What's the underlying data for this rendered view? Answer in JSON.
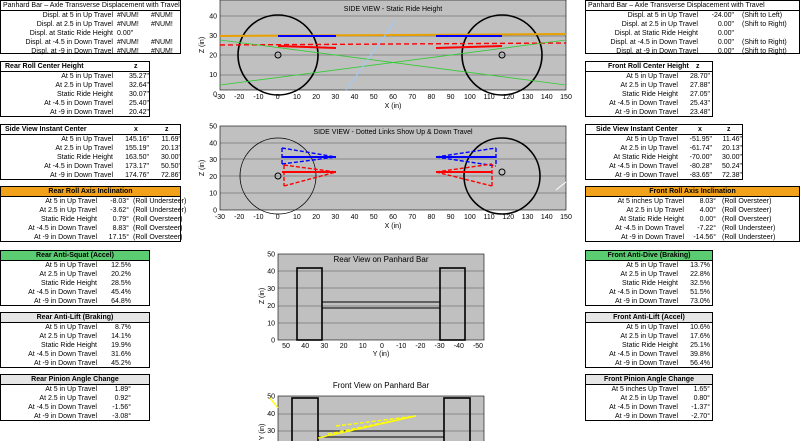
{
  "left": {
    "panhard": {
      "title": "Panhard Bar – Axle Transverse Displacement with Travel",
      "rows": [
        {
          "label": "Displ. at 5 in Up Travel",
          "v1": "#NUM!",
          "v2": "#NUM!"
        },
        {
          "label": "Displ. at 2.5 in Up Travel",
          "v1": "#NUM!",
          "v2": "#NUM!"
        },
        {
          "label": "Displ. at Static Ride Height",
          "v1": "0.00\"",
          "v2": ""
        },
        {
          "label": "Displ. at -4.5 in Down Travel",
          "v1": "#NUM!",
          "v2": "#NUM!"
        },
        {
          "label": "Displ. at -9 in Down Travel",
          "v1": "#NUM!",
          "v2": "#NUM!"
        }
      ]
    },
    "roll_center": {
      "title": "Rear Roll Center Height",
      "col": "z",
      "rows": [
        {
          "label": "At 5 in Up Travel",
          "v": "35.27\""
        },
        {
          "label": "At 2.5 in Up Travel",
          "v": "32.64\""
        },
        {
          "label": "Static Ride Height",
          "v": "30.07\""
        },
        {
          "label": "At -4.5 in Down Travel",
          "v": "25.40\""
        },
        {
          "label": "At -9 in Down Travel",
          "v": "20.42\""
        }
      ]
    },
    "ic": {
      "title": "Side View Instant Center",
      "colx": "x",
      "colz": "z",
      "rows": [
        {
          "label": "At 5 in Up Travel",
          "x": "145.16\"",
          "z": "11.69\""
        },
        {
          "label": "At 2.5 in Up Travel",
          "x": "155.19\"",
          "z": "20.13\""
        },
        {
          "label": "Static Ride Height",
          "x": "163.50\"",
          "z": "30.00\""
        },
        {
          "label": "At -4.5 in Down Travel",
          "x": "173.17\"",
          "z": "50.50\""
        },
        {
          "label": "At -9 in Down Travel",
          "x": "174.76\"",
          "z": "72.86\""
        }
      ]
    },
    "roll_axis": {
      "title": "Rear Roll Axis Inclination",
      "rows": [
        {
          "label": "At 5 in Up Travel",
          "v": "-8.03°",
          "n": "(Roll Understeer)"
        },
        {
          "label": "At 2.5 in Up Travel",
          "v": "-3.62°",
          "n": "(Roll Understeer)"
        },
        {
          "label": "Static Ride Height",
          "v": "0.79°",
          "n": "(Roll Oversteer)"
        },
        {
          "label": "At -4.5 in Down Travel",
          "v": "8.83°",
          "n": "(Roll Oversteer)"
        },
        {
          "label": "At -9 in Down Travel",
          "v": "17.15°",
          "n": "(Roll Oversteer)"
        }
      ]
    },
    "anti_squat": {
      "title": "Rear Anti-Squat (Accel)",
      "rows": [
        {
          "label": "At 5 in Up Travel",
          "v": "12.5%"
        },
        {
          "label": "At 2.5 in Up Travel",
          "v": "20.2%"
        },
        {
          "label": "Static Ride Height",
          "v": "28.5%"
        },
        {
          "label": "At -4.5 in Down Travel",
          "v": "45.4%"
        },
        {
          "label": "At -9 in Down Travel",
          "v": "64.8%"
        }
      ]
    },
    "anti_lift": {
      "title": "Rear Anti-Lift (Braking)",
      "rows": [
        {
          "label": "At 5 in Up Travel",
          "v": "8.7%"
        },
        {
          "label": "At 2.5 in Up Travel",
          "v": "14.1%"
        },
        {
          "label": "Static Ride Height",
          "v": "19.9%"
        },
        {
          "label": "At -4.5 in Down Travel",
          "v": "31.6%"
        },
        {
          "label": "At -9 in Down Travel",
          "v": "45.2%"
        }
      ]
    },
    "pinion": {
      "title": "Rear Pinion Angle Change",
      "rows": [
        {
          "label": "At 5 in Up Travel",
          "v": "1.89°"
        },
        {
          "label": "At 2.5 in Up Travel",
          "v": "0.92°"
        },
        {
          "label": "At -4.5 in Down Travel",
          "v": "-1.56°"
        },
        {
          "label": "At -9 in Down Travel",
          "v": "-3.08°"
        }
      ]
    }
  },
  "right": {
    "panhard": {
      "title": "Panhard Bar – Axle Transverse Displacement with Travel",
      "rows": [
        {
          "label": "Displ. at 5 in Up Travel",
          "v": "-24.00\"",
          "n": "(Shift to Left)"
        },
        {
          "label": "Displ. at 2.5 in Up Travel",
          "v": "0.00\"",
          "n": "(Shift to Right)"
        },
        {
          "label": "Displ. at Static Ride Height",
          "v": "0.00\"",
          "n": ""
        },
        {
          "label": "Displ. at -4.5 in Down Travel",
          "v": "0.00\"",
          "n": "(Shift to Right)"
        },
        {
          "label": "Displ. at -9 in Down Travel",
          "v": "0.00\"",
          "n": "(Shift to Right)"
        }
      ]
    },
    "roll_center": {
      "title": "Front Roll Center Height",
      "col": "z",
      "rows": [
        {
          "label": "At 5 in Up Travel",
          "v": "28.70\""
        },
        {
          "label": "At 2.5 in Up Travel",
          "v": "27.88\""
        },
        {
          "label": "Static Ride Height",
          "v": "27.05\""
        },
        {
          "label": "At -4.5 in Down Travel",
          "v": "25.43\""
        },
        {
          "label": "At -9 in Down Travel",
          "v": "23.48\""
        }
      ]
    },
    "ic": {
      "title": "Side View Instant Center",
      "colx": "x",
      "colz": "z",
      "rows": [
        {
          "label": "At 5 in Up Travel",
          "x": "-51.95\"",
          "z": "11.46\""
        },
        {
          "label": "At 2.5 in Up Travel",
          "x": "-61.74\"",
          "z": "20.13\""
        },
        {
          "label": "At Static Ride Height",
          "x": "-70.00\"",
          "z": "30.00\""
        },
        {
          "label": "At -4.5 in Down Travel",
          "x": "-80.28\"",
          "z": "50.24\""
        },
        {
          "label": "At -9 in Down Travel",
          "x": "-83.65\"",
          "z": "72.38\""
        }
      ]
    },
    "roll_axis": {
      "title": "Front Roll Axis Inclination",
      "rows": [
        {
          "label": "At 5 inches Up Travel",
          "v": "8.03°",
          "n": "(Roll Oversteer)"
        },
        {
          "label": "At 2.5 in Up Travel",
          "v": "4.00°",
          "n": "(Roll Oversteer)"
        },
        {
          "label": "At Static Ride Height",
          "v": "0.00°",
          "n": "(Roll Oversteer)"
        },
        {
          "label": "At -4.5 in Down Travel",
          "v": "-7.22°",
          "n": "(Roll Understeer)"
        },
        {
          "label": "At -9 in Down Travel",
          "v": "-14.56°",
          "n": "(Roll Understeer)"
        }
      ]
    },
    "anti_dive": {
      "title": "Front Anti-Dive (Braking)",
      "rows": [
        {
          "label": "At 5 in Up Travel",
          "v": "13.7%"
        },
        {
          "label": "At 2.5 in Up Travel",
          "v": "22.8%"
        },
        {
          "label": "Static Ride Height",
          "v": "32.5%"
        },
        {
          "label": "At -4.5 in Down Travel",
          "v": "51.5%"
        },
        {
          "label": "At -9 in Down Travel",
          "v": "73.0%"
        }
      ]
    },
    "anti_lift": {
      "title": "Front Anti-Lift (Accel)",
      "rows": [
        {
          "label": "At 5 in Up Travel",
          "v": "10.6%"
        },
        {
          "label": "At 2.5 in Up Travel",
          "v": "17.6%"
        },
        {
          "label": "Static Ride Height",
          "v": "25.1%"
        },
        {
          "label": "At -4.5 in Down Travel",
          "v": "39.8%"
        },
        {
          "label": "At -9 in Down Travel",
          "v": "56.4%"
        }
      ]
    },
    "pinion": {
      "title": "Front Pinion Angle Change",
      "rows": [
        {
          "label": "At 5 inches Up Travel",
          "v": "1.65°"
        },
        {
          "label": "At 2.5 in Up Travel",
          "v": "0.80°"
        },
        {
          "label": "At -4.5 in Down Travel",
          "v": "-1.37°"
        },
        {
          "label": "At -9 in Down Travel",
          "v": "-2.70°"
        }
      ]
    }
  },
  "charts": {
    "side_static": {
      "title": "SIDE VIEW - Static Ride Height",
      "xlabel": "X (in)",
      "ylabel": "Z (in)",
      "xticks": [
        "-30",
        "-20",
        "-10",
        "0",
        "10",
        "20",
        "30",
        "40",
        "50",
        "60",
        "70",
        "80",
        "90",
        "100",
        "110",
        "120",
        "130",
        "140",
        "150"
      ],
      "yticks": [
        "40",
        "30",
        "20",
        "10",
        "0"
      ]
    },
    "side_dotted": {
      "title": "SIDE VIEW - Dotted Links Show  Up & Down Travel",
      "xlabel": "X (in)",
      "ylabel": "Z (in)",
      "xticks": [
        "-30",
        "-20",
        "-10",
        "0",
        "10",
        "20",
        "30",
        "40",
        "50",
        "60",
        "70",
        "80",
        "90",
        "100",
        "110",
        "120",
        "130",
        "140",
        "150"
      ],
      "yticks": [
        "50",
        "40",
        "30",
        "20",
        "10",
        "0"
      ]
    },
    "rear_view": {
      "title": "Rear View on Panhard Bar",
      "xlabel": "Y (in)",
      "ylabel": "Z (in)",
      "xticks": [
        "50",
        "40",
        "30",
        "20",
        "10",
        "0",
        "-10",
        "-20",
        "-30",
        "-40",
        "-50"
      ],
      "yticks": [
        "50",
        "40",
        "30",
        "20",
        "10",
        "0"
      ]
    },
    "front_view": {
      "title": "Front View on Panhard Bar",
      "ylabel": "Y (in)",
      "yticks": [
        "50",
        "40",
        "30",
        "20"
      ]
    }
  }
}
